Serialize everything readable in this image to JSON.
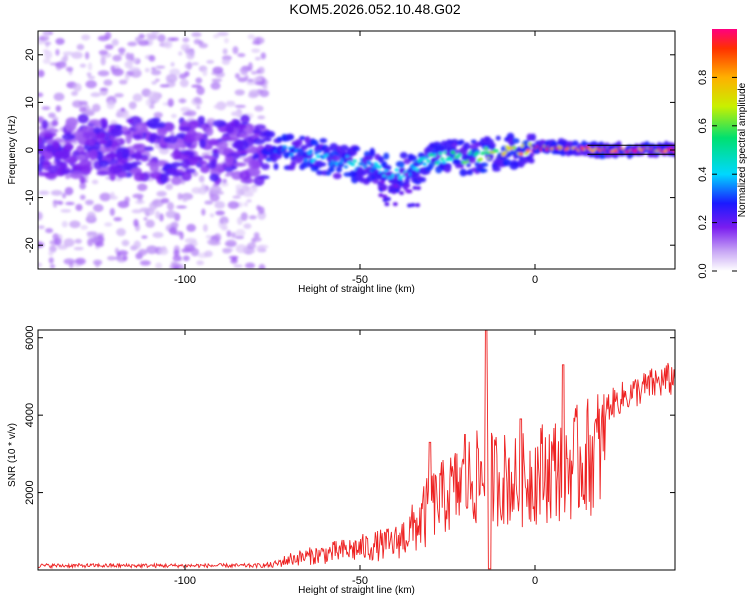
{
  "title": "KOM5.2026.052.10.48.G02",
  "chart_data": [
    {
      "type": "heatmap",
      "name": "spectrogram",
      "xlabel": "Height of straight line (km)",
      "ylabel": "Frequency (Hz)",
      "xlim": [
        -142,
        40
      ],
      "ylim": [
        -25,
        25
      ],
      "xticks": [
        -100,
        -50,
        0
      ],
      "yticks": [
        -20,
        -10,
        0,
        10,
        20
      ],
      "colorbar": {
        "label": "Normalized spectral amplitude",
        "range": [
          0,
          1
        ],
        "ticks": [
          "0.0",
          "0.2",
          "0.4",
          "0.6",
          "0.8"
        ],
        "tick_values": [
          0.0,
          0.2,
          0.4,
          0.6,
          0.8
        ]
      },
      "signal_center_hz": [
        [
          -140,
          0
        ],
        [
          -120,
          0
        ],
        [
          -100,
          0
        ],
        [
          -80,
          0
        ],
        [
          -75,
          0
        ],
        [
          -70,
          -0.5
        ],
        [
          -60,
          -1.5
        ],
        [
          -50,
          -3
        ],
        [
          -45,
          -4
        ],
        [
          -40,
          -5
        ],
        [
          -35,
          -4
        ],
        [
          -30,
          -2
        ],
        [
          -25,
          -1.5
        ],
        [
          -20,
          -1.5
        ],
        [
          -10,
          -0.5
        ],
        [
          0,
          0.5
        ],
        [
          10,
          0.5
        ],
        [
          20,
          0
        ],
        [
          40,
          0
        ]
      ],
      "amplitude_profile": [
        [
          -140,
          0.15
        ],
        [
          -80,
          0.2
        ],
        [
          -75,
          0.35
        ],
        [
          -60,
          0.4
        ],
        [
          -50,
          0.45
        ],
        [
          -40,
          0.4
        ],
        [
          -30,
          0.5
        ],
        [
          -20,
          0.6
        ],
        [
          -10,
          0.7
        ],
        [
          0,
          0.9
        ],
        [
          10,
          0.95
        ],
        [
          20,
          0.98
        ],
        [
          40,
          1.0
        ]
      ]
    },
    {
      "type": "line",
      "name": "snr",
      "xlabel": "Height of straight line (km)",
      "ylabel": "SNR (10 * v/v)",
      "xlim": [
        -142,
        40
      ],
      "ylim": [
        0,
        6200
      ],
      "xticks": [
        -100,
        -50,
        0
      ],
      "yticks": [
        2000,
        4000,
        6000
      ],
      "color": "#ee2222",
      "envelope": [
        [
          -142,
          150
        ],
        [
          -80,
          150
        ],
        [
          -75,
          180
        ],
        [
          -70,
          400
        ],
        [
          -60,
          600
        ],
        [
          -50,
          800
        ],
        [
          -45,
          900
        ],
        [
          -40,
          1000
        ],
        [
          -35,
          1500
        ],
        [
          -30,
          2200
        ],
        [
          -25,
          2600
        ],
        [
          -20,
          3000
        ],
        [
          -15,
          3200
        ],
        [
          -10,
          3200
        ],
        [
          -5,
          3000
        ],
        [
          0,
          3300
        ],
        [
          5,
          3500
        ],
        [
          10,
          3600
        ],
        [
          15,
          3900
        ],
        [
          20,
          4300
        ],
        [
          25,
          4600
        ],
        [
          30,
          4800
        ],
        [
          35,
          5000
        ],
        [
          40,
          5100
        ]
      ],
      "peaks": [
        [
          -14,
          6200
        ],
        [
          -30,
          3300
        ],
        [
          -20,
          3500
        ],
        [
          -4,
          3900
        ],
        [
          8,
          5300
        ]
      ]
    }
  ]
}
